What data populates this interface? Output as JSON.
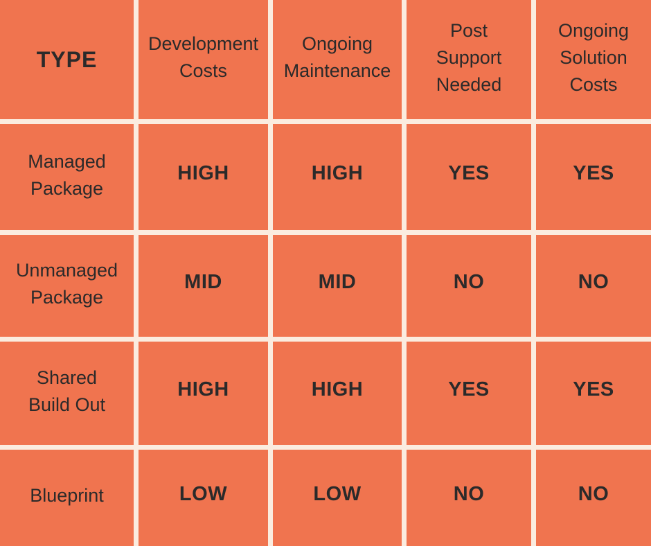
{
  "colors": {
    "cell_bg": "#F0744F",
    "grid_bg": "#FBECDF",
    "text": "#2B2A2A"
  },
  "display": {
    "type_label": "TYPE",
    "headers": [
      "Development\nCosts",
      "Ongoing\nMaintenance",
      "Post\nSupport\nNeeded",
      "Ongoing\nSolution\nCosts"
    ],
    "rows": [
      {
        "label": "Managed\nPackage",
        "values": [
          "HIGH",
          "HIGH",
          "YES",
          "YES"
        ]
      },
      {
        "label": "Unmanaged\nPackage",
        "values": [
          "MID",
          "MID",
          "NO",
          "NO"
        ]
      },
      {
        "label": "Shared\nBuild Out",
        "values": [
          "HIGH",
          "HIGH",
          "YES",
          "YES"
        ]
      },
      {
        "label": "Blueprint",
        "values": [
          "LOW",
          "LOW",
          "NO",
          "NO"
        ]
      }
    ]
  },
  "chart_data": {
    "type": "table",
    "title": "",
    "columns": [
      "TYPE",
      "Development Costs",
      "Ongoing Maintenance",
      "Post Support Needed",
      "Ongoing Solution Costs"
    ],
    "rows": [
      [
        "Managed Package",
        "HIGH",
        "HIGH",
        "YES",
        "YES"
      ],
      [
        "Unmanaged Package",
        "MID",
        "MID",
        "NO",
        "NO"
      ],
      [
        "Shared Build Out",
        "HIGH",
        "HIGH",
        "YES",
        "YES"
      ],
      [
        "Blueprint",
        "LOW",
        "LOW",
        "NO",
        "NO"
      ]
    ],
    "layout_hints": {
      "grid": "cream gridlines between cells, no outer border",
      "header_row": true,
      "label_column": true,
      "value_style": "bold uppercase"
    }
  }
}
